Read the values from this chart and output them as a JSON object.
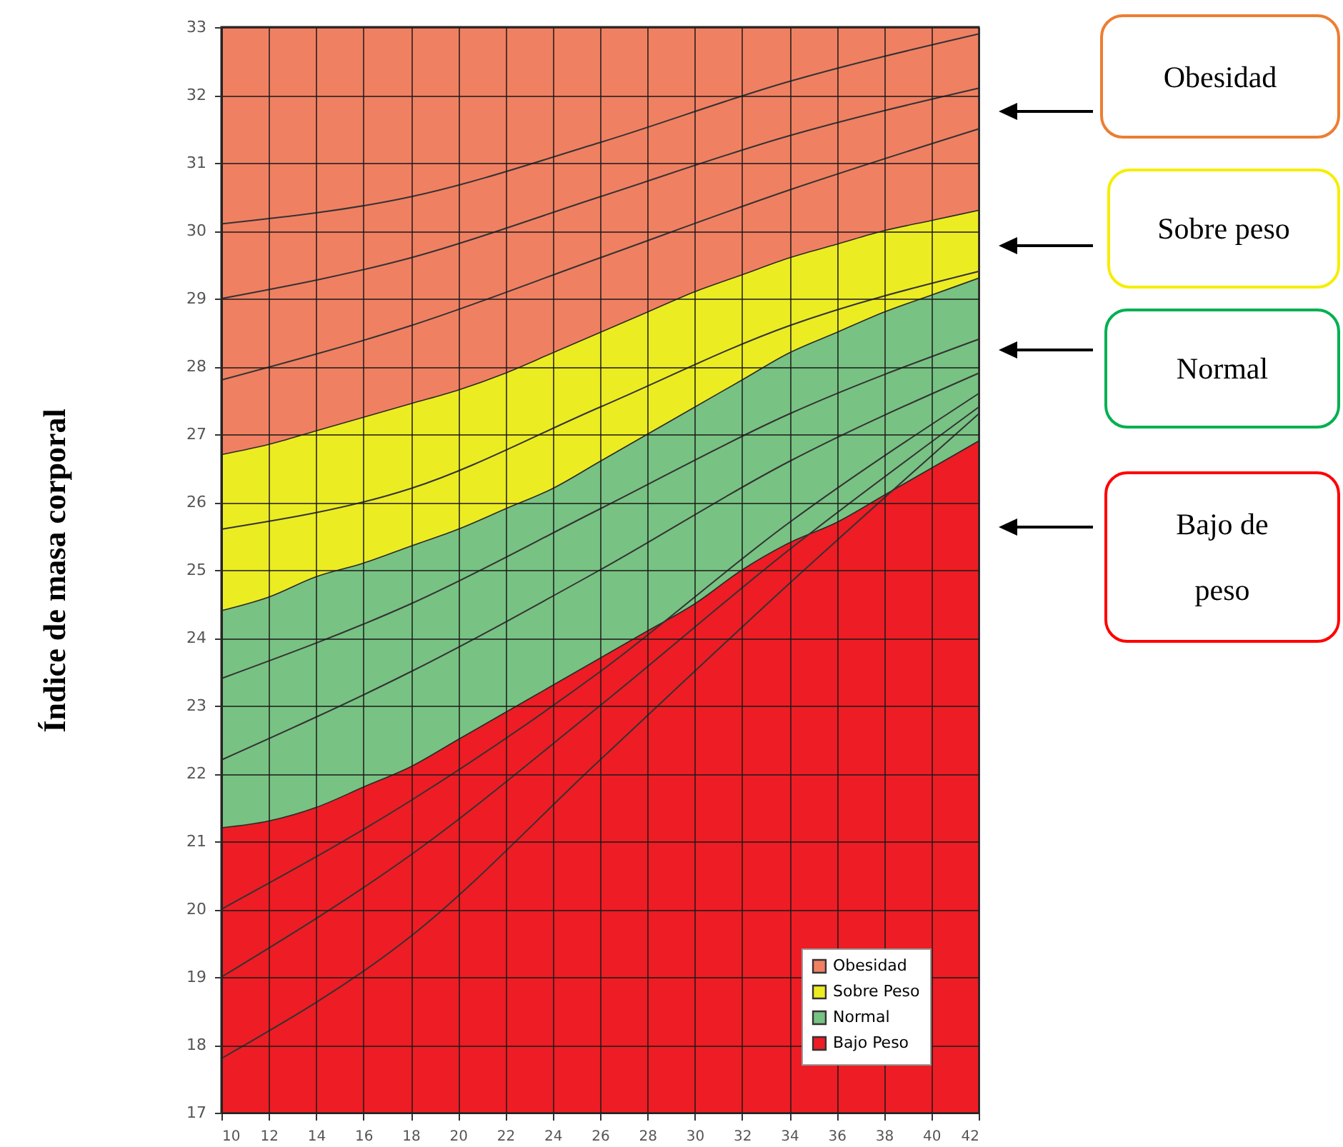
{
  "chart_data": {
    "type": "area",
    "ylabel": "Índice de masa corporal",
    "x": [
      10,
      12,
      14,
      16,
      18,
      20,
      22,
      24,
      26,
      28,
      30,
      32,
      34,
      36,
      38,
      40,
      42
    ],
    "xlim": [
      10,
      42
    ],
    "xticks": [
      10,
      12,
      14,
      16,
      18,
      20,
      22,
      24,
      26,
      28,
      30,
      32,
      34,
      36,
      38,
      40,
      42
    ],
    "ylim": [
      17,
      33
    ],
    "yticks": [
      17,
      18,
      19,
      20,
      21,
      22,
      23,
      24,
      25,
      26,
      27,
      28,
      29,
      30,
      31,
      32,
      33
    ],
    "grid": true,
    "legend": "bottom right",
    "series": [
      {
        "name": "Obesidad",
        "color": "#f08062",
        "values": [
          33,
          33,
          33,
          33,
          33,
          33,
          33,
          33,
          33,
          33,
          33,
          33,
          33,
          33,
          33,
          33,
          33
        ]
      },
      {
        "name": "Sobre Peso",
        "color": "#ecec22",
        "values": [
          26.7,
          26.85,
          27.05,
          27.25,
          27.45,
          27.65,
          27.9,
          28.2,
          28.5,
          28.8,
          29.1,
          29.35,
          29.6,
          29.8,
          30.0,
          30.15,
          30.3
        ]
      },
      {
        "name": "Normal",
        "color": "#78c283",
        "values": [
          24.4,
          24.6,
          24.9,
          25.1,
          25.35,
          25.6,
          25.9,
          26.2,
          26.6,
          27.0,
          27.4,
          27.8,
          28.2,
          28.5,
          28.8,
          29.05,
          29.3
        ]
      },
      {
        "name": "Bajo Peso",
        "color": "#ee1c24",
        "values": [
          21.2,
          21.3,
          21.5,
          21.8,
          22.1,
          22.5,
          22.9,
          23.3,
          23.7,
          24.1,
          24.5,
          25.0,
          25.4,
          25.7,
          26.1,
          26.5,
          26.9
        ]
      },
      {
        "type": "line",
        "color": "#333333",
        "x": [
          10,
          18,
          26,
          34,
          42
        ],
        "values": [
          30.1,
          30.5,
          31.3,
          32.2,
          32.9
        ]
      },
      {
        "type": "line",
        "color": "#333333",
        "x": [
          10,
          18,
          26,
          34,
          42
        ],
        "values": [
          29.0,
          29.6,
          30.5,
          31.4,
          32.1
        ]
      },
      {
        "type": "line",
        "color": "#333333",
        "x": [
          10,
          18,
          26,
          34,
          42
        ],
        "values": [
          27.8,
          28.6,
          29.6,
          30.6,
          31.5
        ]
      },
      {
        "type": "line",
        "color": "#333333",
        "x": [
          10,
          18,
          26,
          34,
          42
        ],
        "values": [
          25.6,
          26.2,
          27.4,
          28.6,
          29.4
        ]
      },
      {
        "type": "line",
        "color": "#333333",
        "x": [
          10,
          18,
          26,
          34,
          42
        ],
        "values": [
          23.4,
          24.5,
          25.9,
          27.3,
          28.4
        ]
      },
      {
        "type": "line",
        "color": "#333333",
        "x": [
          10,
          18,
          26,
          34,
          42
        ],
        "values": [
          22.2,
          23.5,
          25.0,
          26.6,
          27.9
        ]
      },
      {
        "type": "line",
        "color": "#333333",
        "x": [
          10,
          18,
          26,
          34,
          42
        ],
        "values": [
          20.0,
          21.6,
          23.5,
          25.7,
          27.6
        ]
      },
      {
        "type": "line",
        "color": "#333333",
        "x": [
          10,
          18,
          26,
          34,
          42
        ],
        "values": [
          19.0,
          20.8,
          23.0,
          25.3,
          27.4
        ]
      },
      {
        "type": "line",
        "color": "#333333",
        "x": [
          10,
          18,
          26,
          34,
          42
        ],
        "values": [
          17.8,
          19.6,
          22.2,
          24.8,
          27.3
        ]
      }
    ],
    "annotations": [
      "Obesidad",
      "Sobre peso",
      "Normal",
      "Bajo de peso"
    ]
  }
}
